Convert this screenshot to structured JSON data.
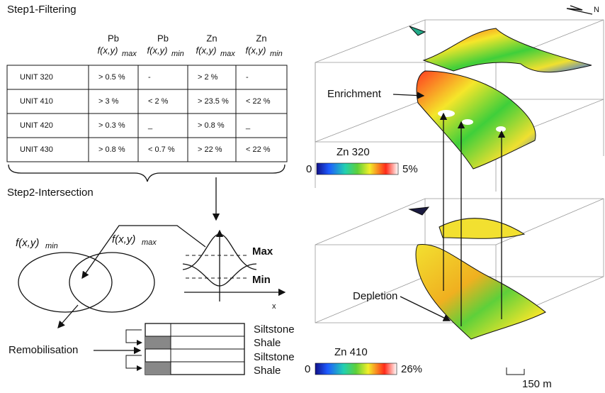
{
  "step1": {
    "title": "Step1-Filtering",
    "table": {
      "columns": [
        {
          "element": "Pb",
          "function": "f(x,y)",
          "sub": "max"
        },
        {
          "element": "Pb",
          "function": "f(x,y)",
          "sub": "min"
        },
        {
          "element": "Zn",
          "function": "f(x,y)",
          "sub": "max"
        },
        {
          "element": "Zn",
          "function": "f(x,y)",
          "sub": "min"
        }
      ],
      "rows": [
        [
          "UNIT 320",
          "> 0.5 %",
          "-",
          "> 2 %",
          "-"
        ],
        [
          "UNIT 410",
          "> 3 %",
          "< 2 %",
          "> 23.5 %",
          "< 22 %"
        ],
        [
          "UNIT 420",
          "> 0.3 %",
          "_",
          "> 0.8 %",
          "_"
        ],
        [
          "UNIT 430",
          "> 0.8 %",
          "< 0.7 %",
          "> 22 %",
          "< 22 %"
        ]
      ]
    }
  },
  "step2": {
    "title": "Step2-Intersection",
    "venn": {
      "left": {
        "function": "f(x,y)",
        "sub": "min"
      },
      "right": {
        "function": "f(x,y)",
        "sub": "max"
      }
    },
    "plot": {
      "max": "Max",
      "min": "Min",
      "axis": "x"
    },
    "remobilisation": "Remobilisation",
    "layers": [
      "Siltstone",
      "Shale",
      "Siltstone",
      "Shale"
    ]
  },
  "maps": {
    "north": "N",
    "enrichment": "Enrichment",
    "depletion": "Depletion",
    "top": {
      "title": "Zn 320",
      "min": "0",
      "max": "5%"
    },
    "bottom": {
      "title": "Zn 410",
      "min": "0",
      "max": "26%"
    },
    "scale": "150 m"
  }
}
